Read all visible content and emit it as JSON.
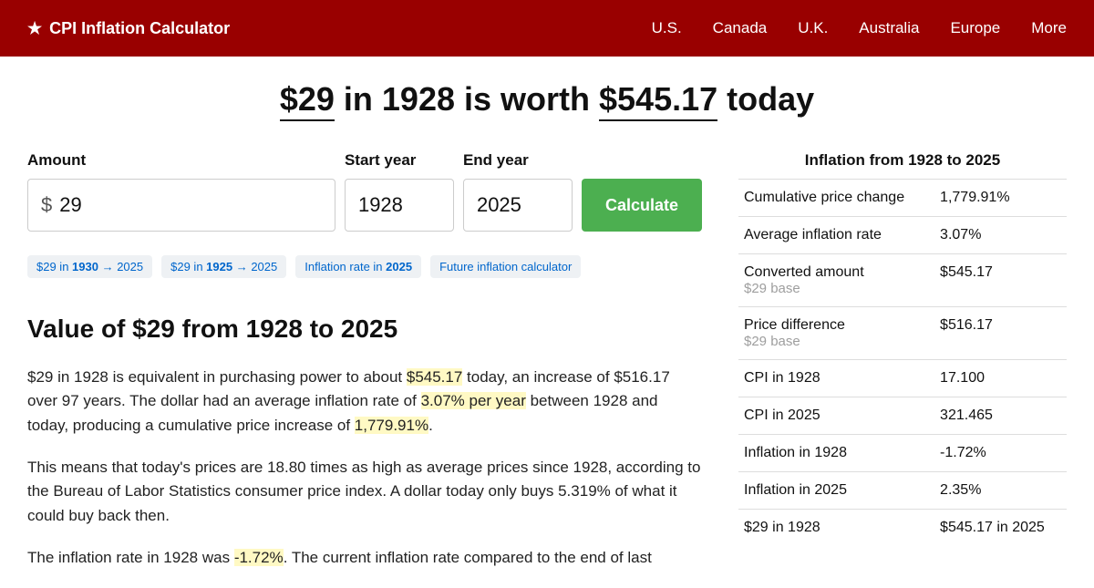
{
  "header": {
    "logo": "CPI Inflation Calculator",
    "nav": [
      "U.S.",
      "Canada",
      "U.K.",
      "Australia",
      "Europe",
      "More"
    ]
  },
  "headline": {
    "amount": "$29",
    "mid": " in 1928 is worth ",
    "result": "$545.17",
    "tail": " today"
  },
  "form": {
    "amount_label": "Amount",
    "amount_value": "29",
    "start_label": "Start year",
    "start_value": "1928",
    "end_label": "End year",
    "end_value": "2025",
    "button": "Calculate"
  },
  "chips": {
    "c0_pre": "$29 in ",
    "c0_b": "1930",
    "c0_post": " → 2025",
    "c1_pre": "$29 in ",
    "c1_b": "1925",
    "c1_post": " → 2025",
    "c2_pre": "Inflation rate in ",
    "c2_b": "2025",
    "c2_post": "",
    "c3_pre": "Future inflation calculator",
    "c3_b": "",
    "c3_post": ""
  },
  "section_heading": "Value of $29 from 1928 to 2025",
  "para1": {
    "a": "$29 in 1928 is equivalent in purchasing power to about ",
    "h1": "$545.17",
    "b": " today, an increase of $516.17 over 97 years. The dollar had an average inflation rate of ",
    "h2": "3.07% per year",
    "c": " between 1928 and today, producing a cumulative price increase of ",
    "h3": "1,779.91%",
    "d": "."
  },
  "para2": "This means that today's prices are 18.80 times as high as average prices since 1928, according to the Bureau of Labor Statistics consumer price index. A dollar today only buys 5.319% of what it could buy back then.",
  "para3": {
    "a": "The inflation rate in 1928 was ",
    "h1": "-1.72%",
    "b": ". The current inflation rate compared to the end of last"
  },
  "side": {
    "title": "Inflation from 1928 to 2025",
    "rows": [
      {
        "label": "Cumulative price change",
        "sub": "",
        "value": "1,779.91%"
      },
      {
        "label": "Average inflation rate",
        "sub": "",
        "value": "3.07%"
      },
      {
        "label": "Converted amount",
        "sub": "$29 base",
        "value": "$545.17"
      },
      {
        "label": "Price difference",
        "sub": "$29 base",
        "value": "$516.17"
      },
      {
        "label": "CPI in 1928",
        "sub": "",
        "value": "17.100"
      },
      {
        "label": "CPI in 2025",
        "sub": "",
        "value": "321.465"
      },
      {
        "label": "Inflation in 1928",
        "sub": "",
        "value": "-1.72%"
      },
      {
        "label": "Inflation in 2025",
        "sub": "",
        "value": "2.35%"
      },
      {
        "label": "$29 in 1928",
        "sub": "",
        "value": "$545.17 in 2025"
      }
    ]
  }
}
